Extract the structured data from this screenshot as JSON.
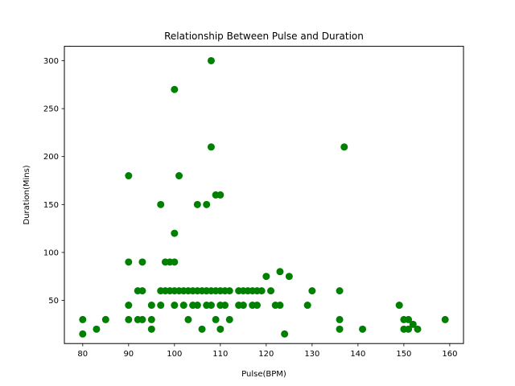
{
  "chart_data": {
    "type": "scatter",
    "title": "Relationship Between Pulse and Duration",
    "xlabel": "Pulse(BPM)",
    "ylabel": "Duration(Mins)",
    "xlim": [
      76,
      163
    ],
    "ylim": [
      5,
      315
    ],
    "xticks": [
      80,
      90,
      100,
      110,
      120,
      130,
      140,
      150,
      160
    ],
    "yticks": [
      50,
      100,
      150,
      200,
      250,
      300
    ],
    "grid": false,
    "marker_color": "#008000",
    "points": [
      [
        80,
        30
      ],
      [
        80,
        15
      ],
      [
        83,
        20
      ],
      [
        85,
        30
      ],
      [
        90,
        180
      ],
      [
        90,
        90
      ],
      [
        90,
        45
      ],
      [
        90,
        30
      ],
      [
        92,
        60
      ],
      [
        92,
        30
      ],
      [
        93,
        90
      ],
      [
        93,
        60
      ],
      [
        93,
        30
      ],
      [
        95,
        45
      ],
      [
        95,
        30
      ],
      [
        95,
        20
      ],
      [
        97,
        150
      ],
      [
        97,
        60
      ],
      [
        97,
        45
      ],
      [
        98,
        90
      ],
      [
        98,
        60
      ],
      [
        99,
        90
      ],
      [
        99,
        60
      ],
      [
        100,
        270
      ],
      [
        100,
        120
      ],
      [
        100,
        90
      ],
      [
        100,
        60
      ],
      [
        100,
        45
      ],
      [
        101,
        180
      ],
      [
        101,
        60
      ],
      [
        102,
        60
      ],
      [
        102,
        45
      ],
      [
        103,
        60
      ],
      [
        103,
        30
      ],
      [
        104,
        60
      ],
      [
        104,
        45
      ],
      [
        105,
        150
      ],
      [
        105,
        60
      ],
      [
        105,
        45
      ],
      [
        106,
        60
      ],
      [
        106,
        20
      ],
      [
        107,
        150
      ],
      [
        107,
        60
      ],
      [
        107,
        45
      ],
      [
        108,
        300
      ],
      [
        108,
        210
      ],
      [
        108,
        60
      ],
      [
        108,
        45
      ],
      [
        109,
        160
      ],
      [
        109,
        60
      ],
      [
        109,
        30
      ],
      [
        110,
        160
      ],
      [
        110,
        60
      ],
      [
        110,
        45
      ],
      [
        110,
        20
      ],
      [
        111,
        60
      ],
      [
        111,
        45
      ],
      [
        112,
        60
      ],
      [
        112,
        30
      ],
      [
        114,
        60
      ],
      [
        114,
        45
      ],
      [
        115,
        60
      ],
      [
        115,
        45
      ],
      [
        116,
        60
      ],
      [
        117,
        60
      ],
      [
        117,
        45
      ],
      [
        118,
        60
      ],
      [
        118,
        45
      ],
      [
        119,
        60
      ],
      [
        120,
        75
      ],
      [
        121,
        60
      ],
      [
        122,
        45
      ],
      [
        123,
        80
      ],
      [
        123,
        45
      ],
      [
        124,
        15
      ],
      [
        125,
        75
      ],
      [
        129,
        45
      ],
      [
        130,
        60
      ],
      [
        136,
        60
      ],
      [
        136,
        30
      ],
      [
        136,
        20
      ],
      [
        137,
        210
      ],
      [
        141,
        20
      ],
      [
        149,
        45
      ],
      [
        150,
        30
      ],
      [
        150,
        20
      ],
      [
        151,
        30
      ],
      [
        151,
        20
      ],
      [
        152,
        25
      ],
      [
        153,
        20
      ],
      [
        159,
        30
      ]
    ]
  }
}
